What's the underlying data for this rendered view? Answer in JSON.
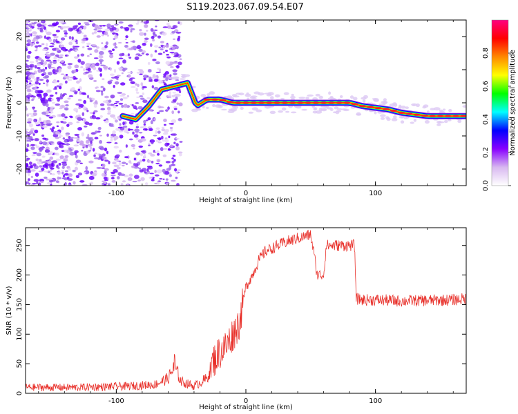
{
  "title": "S119.2023.067.09.54.E07",
  "chart_data": [
    {
      "type": "heatmap",
      "xlabel": "Height of straight line (km)",
      "ylabel": "Frequency (Hz)",
      "xlim": [
        -170,
        170
      ],
      "ylim": [
        -25,
        25
      ],
      "xticks": [
        -100,
        0,
        100
      ],
      "yticks": [
        20,
        10,
        0,
        -10,
        -20
      ],
      "grid": false,
      "colorbar": {
        "label": "Normalized spectral amplitude",
        "range": [
          0,
          1
        ],
        "ticks": [
          "0.0",
          "0.2",
          "0.4",
          "0.6",
          "0.8"
        ],
        "colormap": [
          "#ffffff",
          "#d8b8f0",
          "#8800ff",
          "#0000ff",
          "#00ffff",
          "#00ff00",
          "#ffff00",
          "#ff8800",
          "#ff0000",
          "#ff0080"
        ]
      },
      "ridge": {
        "x": [
          -95,
          -85,
          -75,
          -65,
          -55,
          -45,
          -38,
          -30,
          -20,
          -10,
          0,
          20,
          40,
          60,
          80,
          90,
          100,
          110,
          120,
          130,
          140,
          150,
          160,
          170
        ],
        "y": [
          -4,
          -5,
          -1,
          4,
          5,
          6,
          -1,
          1,
          1,
          0,
          0,
          0,
          0,
          0,
          0,
          -1,
          -1.5,
          -2,
          -3,
          -3.5,
          -4,
          -4,
          -4,
          -4
        ]
      }
    },
    {
      "type": "line",
      "xlabel": "Height of straight line (km)",
      "ylabel": "SNR (10 * v/v)",
      "xlim": [
        -170,
        170
      ],
      "ylim": [
        0,
        280
      ],
      "xticks": [
        -100,
        0,
        100
      ],
      "yticks": [
        0,
        50,
        100,
        150,
        200,
        250
      ],
      "color": "#e8302a",
      "grid": false,
      "trend": {
        "x": [
          -170,
          -130,
          -90,
          -70,
          -60,
          -55,
          -50,
          -40,
          -30,
          -25,
          -20,
          -15,
          -10,
          -5,
          0,
          5,
          10,
          15,
          20,
          30,
          40,
          50,
          53,
          55,
          60,
          62,
          65,
          75,
          84,
          85,
          90,
          100,
          120,
          140,
          160,
          170
        ],
        "y": [
          10,
          10,
          12,
          15,
          25,
          45,
          20,
          12,
          25,
          55,
          70,
          80,
          100,
          120,
          180,
          200,
          225,
          240,
          245,
          255,
          262,
          268,
          230,
          200,
          200,
          250,
          250,
          250,
          250,
          160,
          158,
          158,
          156,
          157,
          158,
          160
        ]
      }
    }
  ]
}
